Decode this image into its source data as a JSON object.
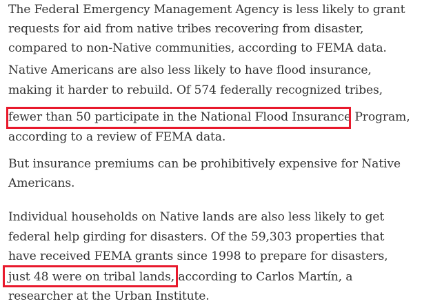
{
  "paragraphs": [
    {
      "lines": [
        "The Federal Emergency Management Agency is less likely to grant",
        "requests for aid from native tribes recovering from disaster,",
        "compared to non-Native communities, according to FEMA data."
      ]
    },
    {
      "lines": [
        "Native Americans are also less likely to have flood insurance,",
        "making it harder to rebuild. Of 574 federally recognized tribes,",
        "fewer than 50 participate in the National Flood Insurance Program,",
        "according to a review of FEMA data."
      ]
    },
    {
      "lines": [
        "But insurance premiums can be prohibitively expensive for Native",
        "Americans."
      ]
    },
    {
      "lines": [
        "Individual households on Native lands are also less likely to get",
        "federal help girding for disasters. Of the 59,303 properties that",
        "have received FEMA grants since 1998 to prepare for disasters,",
        "just 48 were on tribal lands, according to Carlos Martín, a",
        "researcher at the Urban Institute."
      ]
    }
  ],
  "highlight_color": "#e8192c"
}
